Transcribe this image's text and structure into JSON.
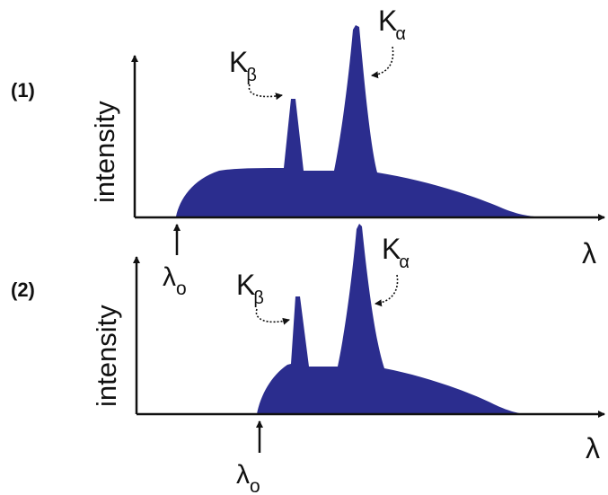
{
  "colors": {
    "spectrum_fill": "#2B2D8E",
    "axis": "#111111",
    "text": "#111111",
    "background": "#ffffff"
  },
  "panels": [
    {
      "label": "(1)",
      "y_axis_label": "intensity",
      "x_axis_symbol": "λ",
      "cutoff_label": "λ",
      "cutoff_subscript": "o",
      "k_beta": {
        "symbol": "K",
        "subscript": "β"
      },
      "k_alpha": {
        "symbol": "K",
        "subscript": "α"
      }
    },
    {
      "label": "(2)",
      "y_axis_label": "intensity",
      "x_axis_symbol": "λ",
      "cutoff_label": "λ",
      "cutoff_subscript": "o",
      "k_beta": {
        "symbol": "K",
        "subscript": "β"
      },
      "k_alpha": {
        "symbol": "K",
        "subscript": "α"
      }
    }
  ]
}
